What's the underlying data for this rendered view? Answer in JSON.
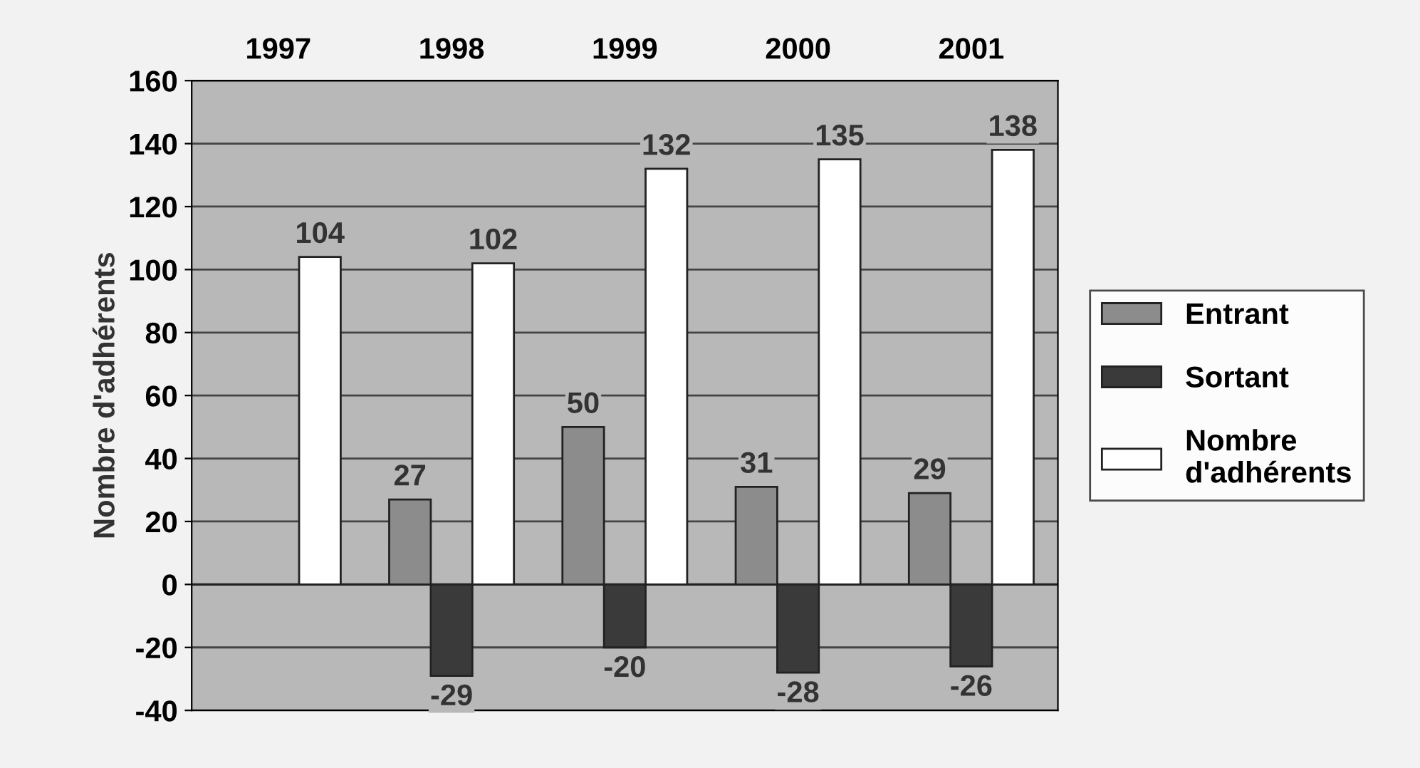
{
  "chart_data": {
    "type": "bar",
    "ylabel": "Nombre d'adhérents",
    "categories": [
      "1997",
      "1998",
      "1999",
      "2000",
      "2001"
    ],
    "series": [
      {
        "name": "Entrant",
        "color": "#8c8c8c",
        "values": [
          null,
          27,
          50,
          31,
          29
        ]
      },
      {
        "name": "Sortant",
        "color": "#3a3a3a",
        "values": [
          null,
          -29,
          -20,
          -28,
          -26
        ]
      },
      {
        "name": "Nombre d'adhérents",
        "color": "#ffffff",
        "values": [
          104,
          102,
          132,
          135,
          138
        ]
      }
    ],
    "ylim": [
      -40,
      160
    ],
    "yticks": [
      -40,
      -20,
      0,
      20,
      40,
      60,
      80,
      100,
      120,
      140,
      160
    ],
    "grid": "y",
    "legend": "right",
    "data_labels": true
  }
}
